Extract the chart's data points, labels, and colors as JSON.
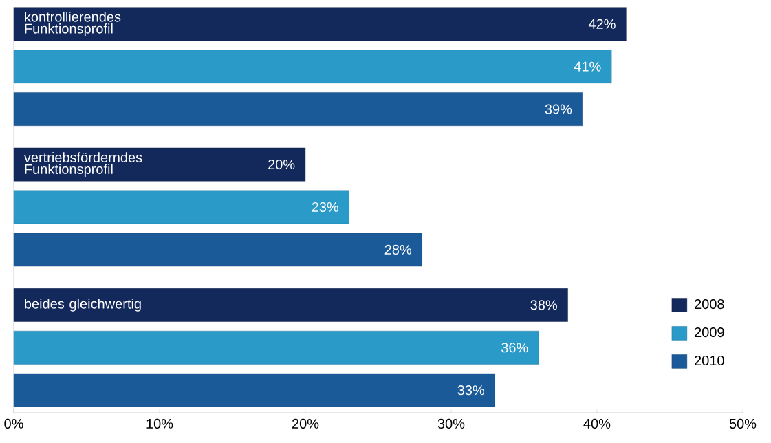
{
  "chart_data": {
    "type": "bar",
    "orientation": "horizontal",
    "categories": [
      "kontrollierendes Funktionsprofil",
      "vertriebsförderndes Funktionsprofil",
      "beides gleichwertig"
    ],
    "series": [
      {
        "name": "2008",
        "color": "#13295b",
        "values": [
          42,
          20,
          38
        ],
        "value_labels": [
          "42%",
          "20%",
          "38%"
        ]
      },
      {
        "name": "2009",
        "color": "#2a9ac9",
        "values": [
          41,
          23,
          36
        ],
        "value_labels": [
          "41%",
          "23%",
          "36%"
        ]
      },
      {
        "name": "2010",
        "color": "#1b5a99",
        "values": [
          39,
          28,
          33
        ],
        "value_labels": [
          "39%",
          "28%",
          "33%"
        ]
      }
    ],
    "xlim": [
      0,
      50
    ],
    "xticks": [
      {
        "value": 0,
        "label": "0%"
      },
      {
        "value": 10,
        "label": "10%"
      },
      {
        "value": 20,
        "label": "20%"
      },
      {
        "value": 30,
        "label": "30%"
      },
      {
        "value": 40,
        "label": "40%"
      },
      {
        "value": 50,
        "label": "50%"
      }
    ],
    "legend": "bottom right"
  }
}
